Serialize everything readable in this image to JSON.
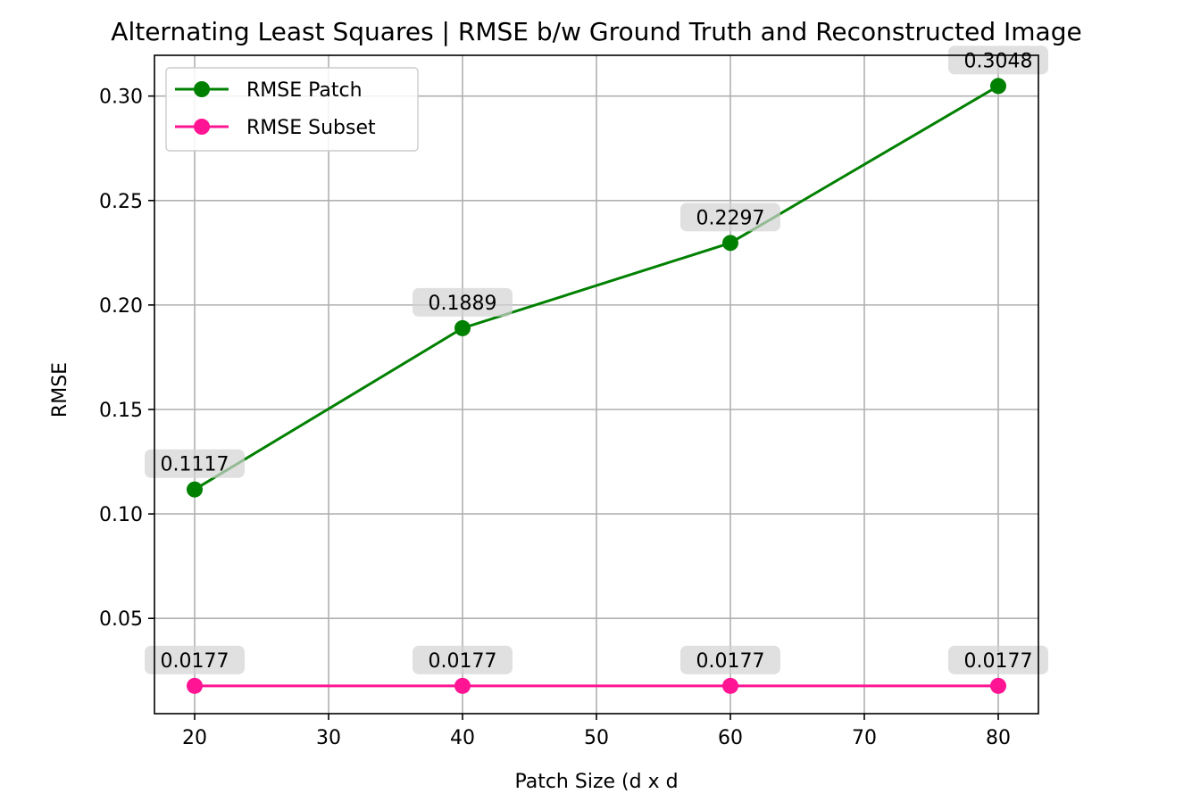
{
  "chart_data": {
    "type": "line",
    "title": "Alternating Least Squares | RMSE b/w Ground Truth and Reconstructed Image",
    "xlabel": "Patch Size (d x d",
    "ylabel": "RMSE",
    "x": [
      20,
      40,
      60,
      80
    ],
    "xlim": [
      17,
      83
    ],
    "ylim": [
      0.0044,
      0.3195
    ],
    "xticks": [
      20,
      30,
      40,
      50,
      60,
      70,
      80
    ],
    "yticks": [
      0.05,
      0.1,
      0.15,
      0.2,
      0.25,
      0.3
    ],
    "xtick_labels": [
      "20",
      "30",
      "40",
      "50",
      "60",
      "70",
      "80"
    ],
    "ytick_labels": [
      "0.05",
      "0.10",
      "0.15",
      "0.20",
      "0.25",
      "0.30"
    ],
    "grid": true,
    "legend_position": "upper-left",
    "series": [
      {
        "name": "RMSE Patch",
        "color": "#008000",
        "marker": "circle",
        "values": [
          0.1117,
          0.1889,
          0.2297,
          0.3048
        ],
        "labels": [
          "0.1117",
          "0.1889",
          "0.2297",
          "0.3048"
        ]
      },
      {
        "name": "RMSE Subset",
        "color": "#ff1493",
        "marker": "circle",
        "values": [
          0.0177,
          0.0177,
          0.0177,
          0.0177
        ],
        "labels": [
          "0.0177",
          "0.0177",
          "0.0177",
          "0.0177"
        ]
      }
    ]
  }
}
